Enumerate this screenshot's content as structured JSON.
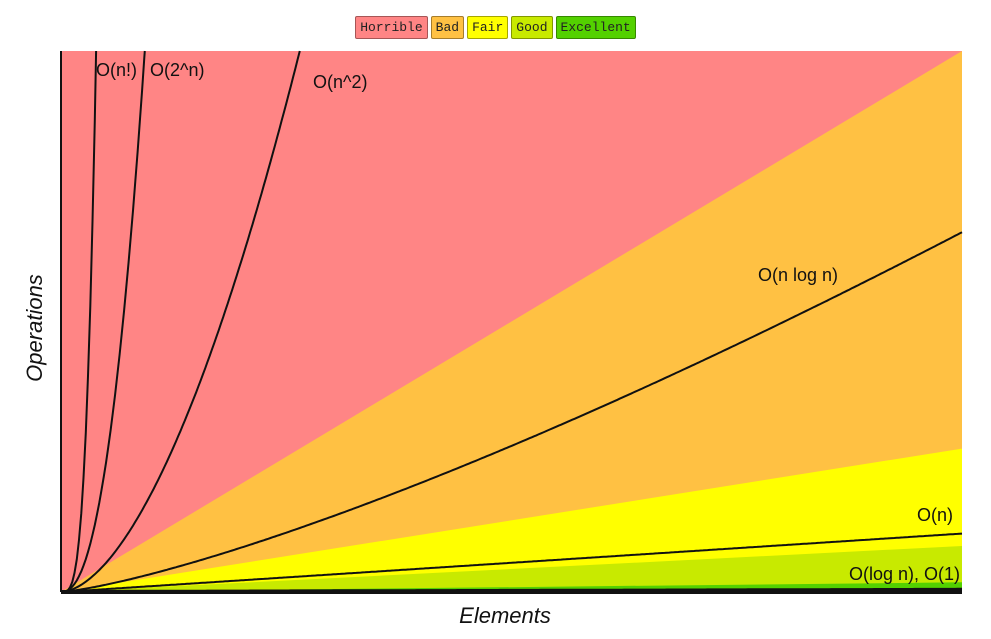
{
  "chart_data": {
    "type": "area",
    "title": "",
    "xlabel": "Elements",
    "ylabel": "Operations",
    "xlim": [
      0,
      100
    ],
    "ylim": [
      0,
      100
    ],
    "grid": false,
    "legend_placement": "top-center",
    "legend": [
      {
        "name": "Horrible",
        "color": "#ff8585"
      },
      {
        "name": "Bad",
        "color": "#ffc143"
      },
      {
        "name": "Fair",
        "color": "#ffff00"
      },
      {
        "name": "Good",
        "color": "#c8ea00"
      },
      {
        "name": "Excellent",
        "color": "#53d100"
      }
    ],
    "regions": [
      {
        "name": "Horrible",
        "color": "#ff8585",
        "top_y_at_xmax": 100
      },
      {
        "name": "Bad",
        "color": "#ffc143",
        "top_y_at_xmax": 100
      },
      {
        "name": "Fair",
        "color": "#ffff00",
        "top_y_at_xmax": 26.5
      },
      {
        "name": "Good",
        "color": "#c8ea00",
        "top_y_at_xmax": 8.5
      },
      {
        "name": "Excellent",
        "color": "#53d100",
        "top_y_at_xmax": 1.8
      }
    ],
    "series": [
      {
        "name": "O(n!)",
        "fn": "factorial"
      },
      {
        "name": "O(2^n)",
        "fn": "exp2"
      },
      {
        "name": "O(n^2)",
        "fn": "square"
      },
      {
        "name": "O(n log n)",
        "fn": "nlogn"
      },
      {
        "name": "O(n)",
        "fn": "linear"
      },
      {
        "name": "O(log n), O(1)",
        "fn": "log"
      }
    ]
  }
}
